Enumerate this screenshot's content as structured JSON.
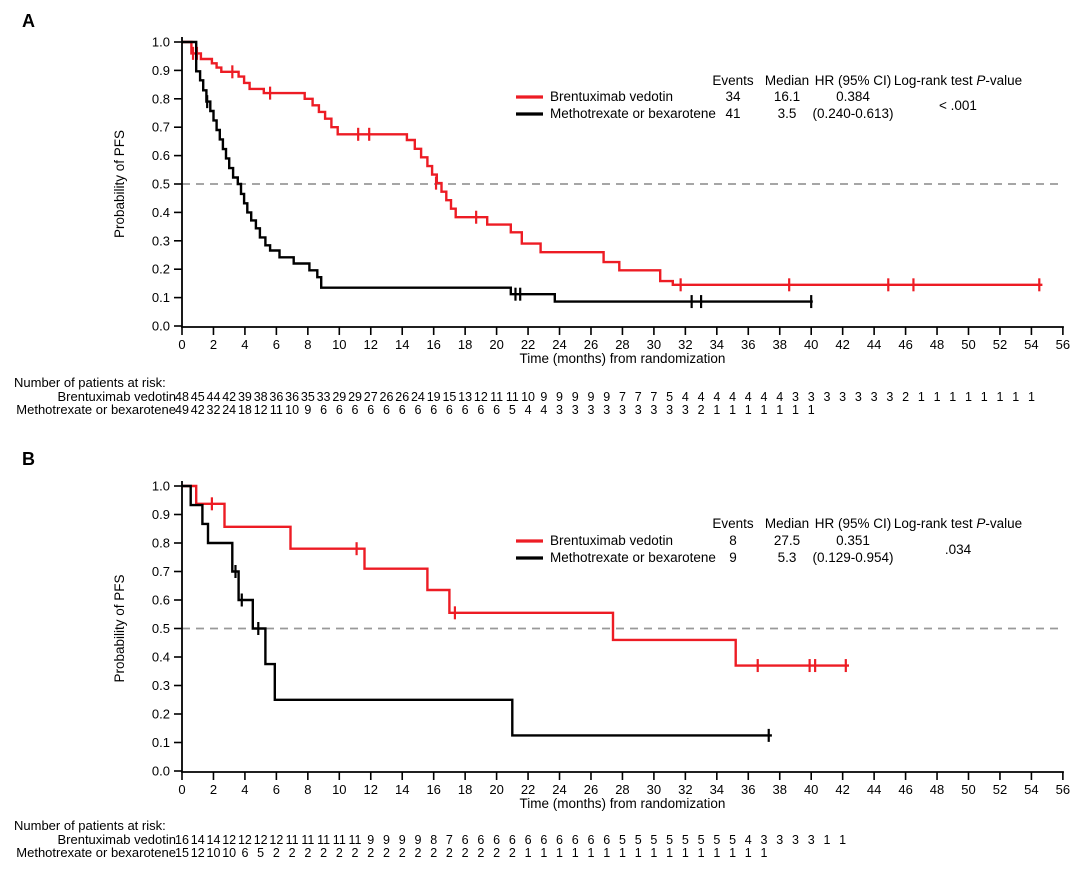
{
  "figure": {
    "description": "Kaplan-Meier progression-free survival curves, two panels",
    "accent_color": "#ed1c24",
    "reference_line_color": "#999999"
  },
  "chart_data": [
    {
      "type": "line",
      "subtype": "kaplan-meier-step",
      "panel_label": "A",
      "xlabel": "Time (months) from randomization",
      "ylabel": "Probability of PFS",
      "xlim": [
        0,
        56
      ],
      "xtick_step": 2,
      "ylim": [
        0.0,
        1.0
      ],
      "ytick_step": 0.1,
      "grid": false,
      "reference_line_y": 0.5,
      "legend": {
        "headers": [
          "Events",
          "Median",
          "HR (95% CI)",
          "Log-rank test P-value"
        ],
        "p_value": "< .001"
      },
      "series": [
        {
          "name": "Brentuximab vedotin",
          "color": "#ed1c24",
          "events": "34",
          "median": "16.1",
          "hr_line1": "0.384",
          "hr_line2": "(0.240-0.613)",
          "steps": [
            [
              0,
              1.0
            ],
            [
              0.6,
              0.96
            ],
            [
              1.2,
              0.94
            ],
            [
              1.9,
              0.925
            ],
            [
              2.2,
              0.91
            ],
            [
              2.5,
              0.895
            ],
            [
              3.6,
              0.878
            ],
            [
              3.95,
              0.856
            ],
            [
              4.3,
              0.835
            ],
            [
              5.2,
              0.82
            ],
            [
              7.8,
              0.8
            ],
            [
              8.3,
              0.777
            ],
            [
              8.7,
              0.754
            ],
            [
              9.1,
              0.73
            ],
            [
              9.5,
              0.7
            ],
            [
              9.9,
              0.675
            ],
            [
              14.3,
              0.655
            ],
            [
              14.8,
              0.624
            ],
            [
              15.2,
              0.594
            ],
            [
              15.6,
              0.563
            ],
            [
              15.9,
              0.533
            ],
            [
              16.2,
              0.503
            ],
            [
              16.5,
              0.473
            ],
            [
              16.8,
              0.443
            ],
            [
              17.1,
              0.413
            ],
            [
              17.4,
              0.383
            ],
            [
              19.4,
              0.357
            ],
            [
              20.9,
              0.33
            ],
            [
              21.6,
              0.29
            ],
            [
              22.8,
              0.26
            ],
            [
              26.8,
              0.225
            ],
            [
              27.8,
              0.196
            ],
            [
              30.4,
              0.158
            ],
            [
              31.2,
              0.145
            ]
          ],
          "end_time": 54.7,
          "censors": [
            [
              0.7,
              0.96
            ],
            [
              0.95,
              0.96
            ],
            [
              3.2,
              0.895
            ],
            [
              5.6,
              0.82
            ],
            [
              11.2,
              0.675
            ],
            [
              11.9,
              0.675
            ],
            [
              16.15,
              0.503
            ],
            [
              18.7,
              0.383
            ],
            [
              31.7,
              0.145
            ],
            [
              38.6,
              0.145
            ],
            [
              44.9,
              0.145
            ],
            [
              46.5,
              0.145
            ],
            [
              54.5,
              0.145
            ]
          ]
        },
        {
          "name": "Methotrexate or bexarotene",
          "color": "#000000",
          "events": "41",
          "median": "3.5",
          "hr_line1": "",
          "hr_line2": "",
          "steps": [
            [
              0,
              1.0
            ],
            [
              0.9,
              0.897
            ],
            [
              1.15,
              0.865
            ],
            [
              1.35,
              0.83
            ],
            [
              1.55,
              0.79
            ],
            [
              1.8,
              0.757
            ],
            [
              2.0,
              0.724
            ],
            [
              2.2,
              0.69
            ],
            [
              2.4,
              0.657
            ],
            [
              2.6,
              0.623
            ],
            [
              2.8,
              0.59
            ],
            [
              3.0,
              0.556
            ],
            [
              3.25,
              0.523
            ],
            [
              3.55,
              0.5
            ],
            [
              3.75,
              0.465
            ],
            [
              3.95,
              0.432
            ],
            [
              4.15,
              0.4
            ],
            [
              4.4,
              0.372
            ],
            [
              4.7,
              0.344
            ],
            [
              4.95,
              0.312
            ],
            [
              5.3,
              0.284
            ],
            [
              5.6,
              0.266
            ],
            [
              6.2,
              0.242
            ],
            [
              7.1,
              0.22
            ],
            [
              8.1,
              0.196
            ],
            [
              8.6,
              0.172
            ],
            [
              8.85,
              0.135
            ],
            [
              20.9,
              0.112
            ],
            [
              23.7,
              0.086
            ]
          ],
          "end_time": 40.1,
          "censors": [
            [
              1.6,
              0.79
            ],
            [
              21.2,
              0.112
            ],
            [
              21.5,
              0.112
            ],
            [
              32.4,
              0.086
            ],
            [
              33.0,
              0.086
            ],
            [
              40.0,
              0.086
            ]
          ]
        }
      ],
      "at_risk_title": "Number of patients at risk:",
      "at_risk_time_step": 1,
      "at_risk": [
        {
          "label": "Brentuximab vedotin",
          "values": [
            48,
            45,
            44,
            42,
            39,
            38,
            36,
            36,
            35,
            33,
            29,
            29,
            27,
            26,
            26,
            24,
            19,
            15,
            13,
            12,
            11,
            11,
            10,
            9,
            9,
            9,
            9,
            9,
            7,
            7,
            7,
            5,
            4,
            4,
            4,
            4,
            4,
            4,
            4,
            3,
            3,
            3,
            3,
            3,
            3,
            3,
            2,
            1,
            1,
            1,
            1,
            1,
            1,
            1,
            1
          ]
        },
        {
          "label": "Methotrexate or bexarotene",
          "values": [
            49,
            42,
            32,
            24,
            18,
            12,
            11,
            10,
            9,
            6,
            6,
            6,
            6,
            6,
            6,
            6,
            6,
            6,
            6,
            6,
            6,
            5,
            4,
            4,
            3,
            3,
            3,
            3,
            3,
            3,
            3,
            3,
            3,
            2,
            1,
            1,
            1,
            1,
            1,
            1,
            1
          ]
        }
      ]
    },
    {
      "type": "line",
      "subtype": "kaplan-meier-step",
      "panel_label": "B",
      "xlabel": "Time (months) from randomization",
      "ylabel": "Probability of PFS",
      "xlim": [
        0,
        56
      ],
      "xtick_step": 2,
      "ylim": [
        0.0,
        1.0
      ],
      "ytick_step": 0.1,
      "grid": false,
      "reference_line_y": 0.5,
      "legend": {
        "headers": [
          "Events",
          "Median",
          "HR (95% CI)",
          "Log-rank test P-value"
        ],
        "p_value": ".034"
      },
      "series": [
        {
          "name": "Brentuximab vedotin",
          "color": "#ed1c24",
          "events": "8",
          "median": "27.5",
          "hr_line1": "0.351",
          "hr_line2": "(0.129-0.954)",
          "steps": [
            [
              0,
              1.0
            ],
            [
              0.9,
              0.9375
            ],
            [
              2.7,
              0.857
            ],
            [
              6.9,
              0.78
            ],
            [
              11.6,
              0.71
            ],
            [
              15.6,
              0.635
            ],
            [
              17.0,
              0.555
            ],
            [
              27.4,
              0.46
            ],
            [
              35.2,
              0.37
            ]
          ],
          "end_time": 42.4,
          "censors": [
            [
              1.9,
              0.9375
            ],
            [
              11.1,
              0.78
            ],
            [
              17.35,
              0.555
            ],
            [
              36.6,
              0.37
            ],
            [
              39.9,
              0.37
            ],
            [
              40.25,
              0.37
            ],
            [
              42.2,
              0.37
            ]
          ]
        },
        {
          "name": "Methotrexate or bexarotene",
          "color": "#000000",
          "events": "9",
          "median": "5.3",
          "hr_line1": "",
          "hr_line2": "",
          "steps": [
            [
              0,
              1.0
            ],
            [
              0.55,
              0.933
            ],
            [
              1.3,
              0.867
            ],
            [
              1.65,
              0.8
            ],
            [
              3.2,
              0.7
            ],
            [
              3.6,
              0.6
            ],
            [
              4.5,
              0.5
            ],
            [
              5.3,
              0.375
            ],
            [
              5.9,
              0.25
            ],
            [
              21.0,
              0.125
            ]
          ],
          "end_time": 37.5,
          "censors": [
            [
              3.4,
              0.7
            ],
            [
              3.8,
              0.6
            ],
            [
              4.85,
              0.5
            ],
            [
              37.3,
              0.125
            ]
          ]
        }
      ],
      "at_risk_title": "Number of patients at risk:",
      "at_risk_time_step": 1,
      "at_risk": [
        {
          "label": "Brentuximab vedotin",
          "values": [
            16,
            14,
            14,
            12,
            12,
            12,
            12,
            11,
            11,
            11,
            11,
            11,
            9,
            9,
            9,
            9,
            8,
            7,
            6,
            6,
            6,
            6,
            6,
            6,
            6,
            6,
            6,
            6,
            5,
            5,
            5,
            5,
            5,
            5,
            5,
            5,
            4,
            3,
            3,
            3,
            3,
            1,
            1
          ]
        },
        {
          "label": "Methotrexate or bexarotene",
          "values": [
            15,
            12,
            10,
            10,
            6,
            5,
            2,
            2,
            2,
            2,
            2,
            2,
            2,
            2,
            2,
            2,
            2,
            2,
            2,
            2,
            2,
            2,
            1,
            1,
            1,
            1,
            1,
            1,
            1,
            1,
            1,
            1,
            1,
            1,
            1,
            1,
            1,
            1
          ]
        }
      ]
    }
  ]
}
